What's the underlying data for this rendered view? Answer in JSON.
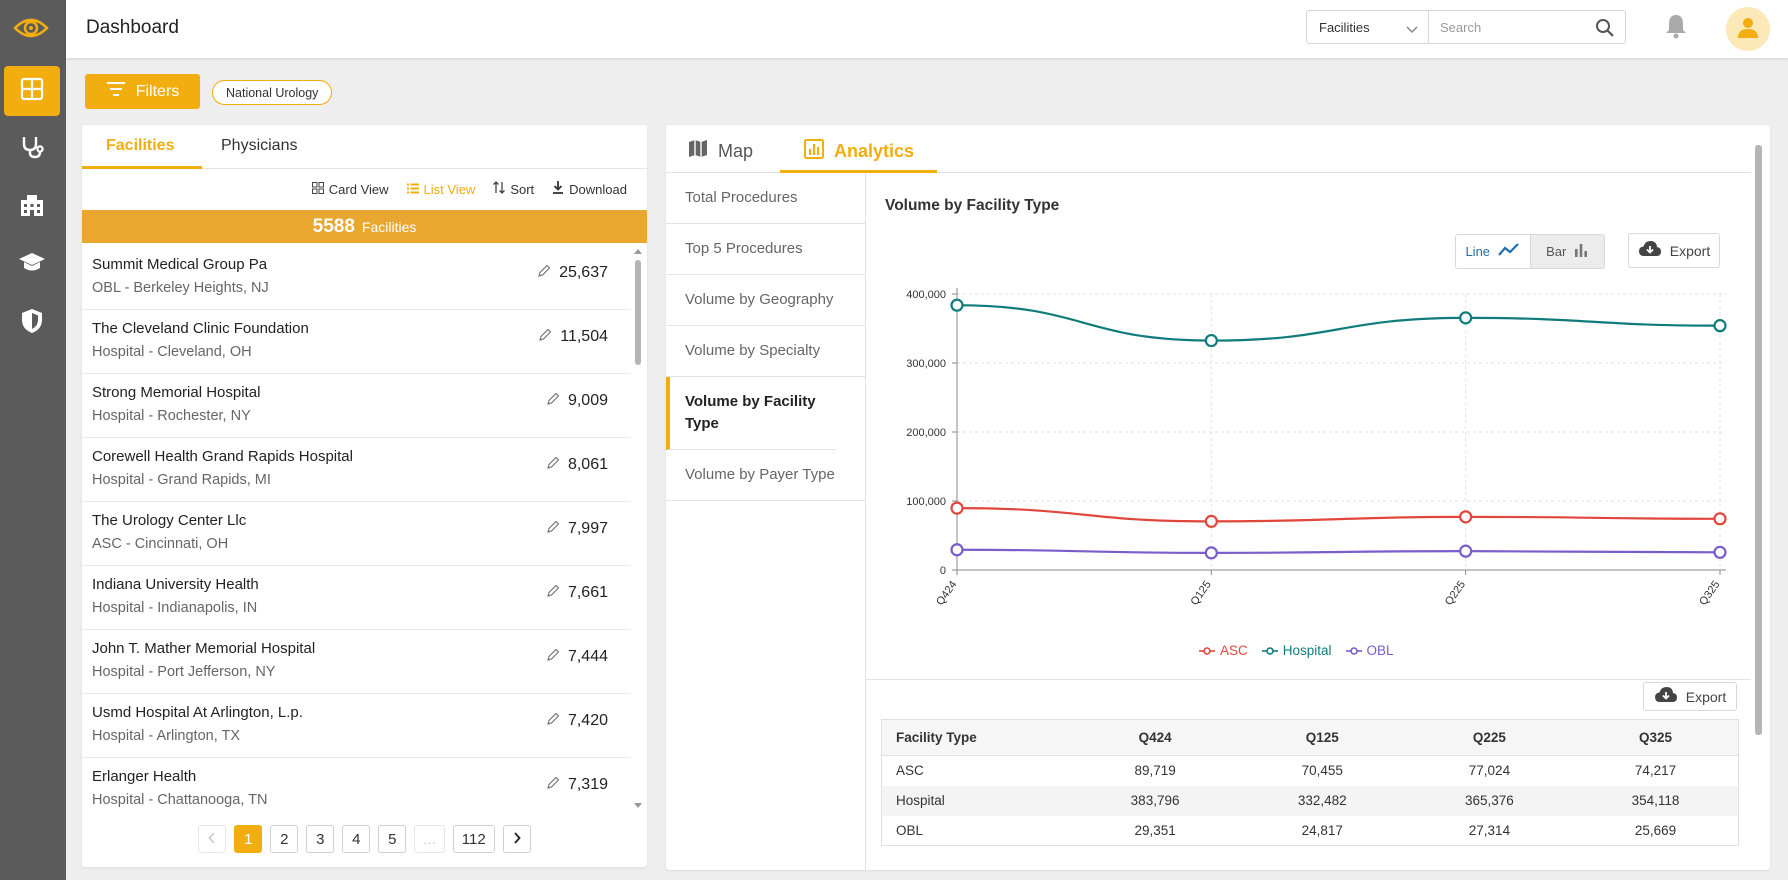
{
  "header": {
    "title": "Dashboard",
    "scope_select": "Facilities",
    "search_placeholder": "Search"
  },
  "filters": {
    "button_label": "Filters",
    "chips": [
      "National Urology"
    ]
  },
  "left_panel": {
    "tabs": [
      "Facilities",
      "Physicians"
    ],
    "toolbar": {
      "card_view": "Card View",
      "list_view": "List View",
      "sort": "Sort",
      "download": "Download"
    },
    "count": "5588",
    "count_label": "Facilities",
    "facilities": [
      {
        "name": "Summit Medical Group Pa",
        "sub": "OBL - Berkeley Heights, NJ",
        "value": "25,637"
      },
      {
        "name": "The Cleveland Clinic Foundation",
        "sub": "Hospital - Cleveland, OH",
        "value": "11,504"
      },
      {
        "name": "Strong Memorial Hospital",
        "sub": "Hospital - Rochester, NY",
        "value": "9,009"
      },
      {
        "name": "Corewell Health Grand Rapids Hospital",
        "sub": "Hospital - Grand Rapids, MI",
        "value": "8,061"
      },
      {
        "name": "The Urology Center Llc",
        "sub": "ASC - Cincinnati, OH",
        "value": "7,997"
      },
      {
        "name": "Indiana University Health",
        "sub": "Hospital - Indianapolis, IN",
        "value": "7,661"
      },
      {
        "name": "John T. Mather Memorial Hospital",
        "sub": "Hospital - Port Jefferson, NY",
        "value": "7,444"
      },
      {
        "name": "Usmd Hospital At Arlington, L.p.",
        "sub": "Hospital - Arlington, TX",
        "value": "7,420"
      },
      {
        "name": "Erlanger Health",
        "sub": "Hospital - Chattanooga, TN",
        "value": "7,319"
      }
    ],
    "pagination": {
      "pages": [
        "1",
        "2",
        "3",
        "4",
        "5"
      ],
      "ellipsis": "...",
      "last": "112",
      "current": "1"
    }
  },
  "right_panel": {
    "tabs": [
      "Map",
      "Analytics"
    ],
    "menu": [
      "Total Procedures",
      "Top 5 Procedures",
      "Volume by Geography",
      "Volume by Specialty",
      "Volume by Facility Type",
      "Volume by Payer Type"
    ],
    "active_menu": "Volume by Facility Type",
    "chart_title": "Volume by Facility Type",
    "toggle": {
      "line": "Line",
      "bar": "Bar"
    },
    "export_label": "Export",
    "table": {
      "headers": [
        "Facility Type",
        "Q424",
        "Q125",
        "Q225",
        "Q325"
      ],
      "rows": [
        [
          "ASC",
          "89,719",
          "70,455",
          "77,024",
          "74,217"
        ],
        [
          "Hospital",
          "383,796",
          "332,482",
          "365,376",
          "354,118"
        ],
        [
          "OBL",
          "29,351",
          "24,817",
          "27,314",
          "25,669"
        ]
      ]
    }
  },
  "chart_data": {
    "type": "line",
    "title": "Volume by Facility Type",
    "categories": [
      "Q424",
      "Q125",
      "Q225",
      "Q325"
    ],
    "ylim": [
      0,
      400000
    ],
    "yticks": [
      "0",
      "100,000",
      "200,000",
      "300,000",
      "400,000"
    ],
    "grid": true,
    "legend_position": "bottom",
    "series": [
      {
        "name": "ASC",
        "color": "#e0473c",
        "values": [
          89719,
          70455,
          77024,
          74217
        ]
      },
      {
        "name": "Hospital",
        "color": "#0f7b7b",
        "values": [
          383796,
          332482,
          365376,
          354118
        ]
      },
      {
        "name": "OBL",
        "color": "#7a5ccc",
        "values": [
          29351,
          24817,
          27314,
          25669
        ]
      }
    ]
  },
  "colors": {
    "accent": "#f2ad0e",
    "sidebar": "#5b5b5b",
    "count_bar": "#e9a730"
  }
}
